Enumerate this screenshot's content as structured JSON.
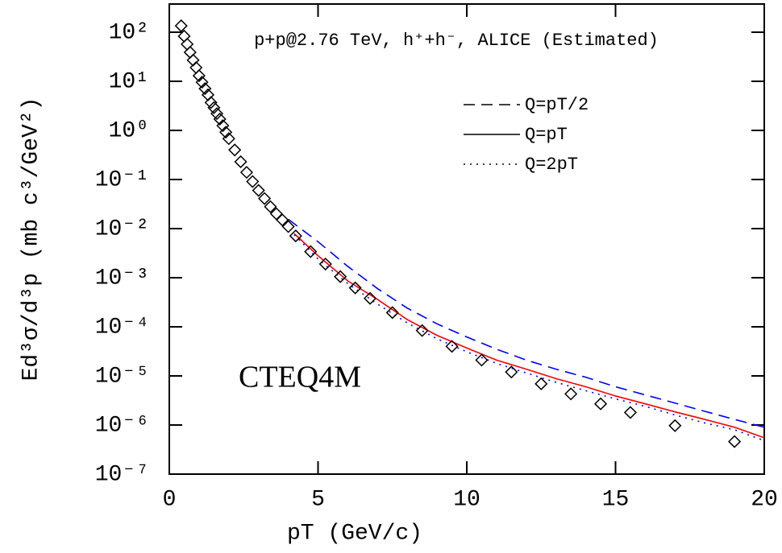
{
  "chart_data": {
    "type": "line",
    "title": "p+p@2.76 TeV, h⁺+h⁻, ALICE (Estimated)",
    "annotation": "CTEQ4M",
    "x_label": "pT (GeV/c)",
    "y_label": "Ed³σ/d³p (mb c³/GeV²)",
    "log_y": true,
    "legend": "upper right",
    "xlim": [
      0,
      20
    ],
    "xticks": [
      0,
      5,
      10,
      15,
      20
    ],
    "ylim": [
      1e-07,
      375
    ],
    "yticks": [
      {
        "value": 100,
        "label": "10²"
      },
      {
        "value": 10,
        "label": "10¹"
      },
      {
        "value": 1,
        "label": "10⁰"
      },
      {
        "value": 0.1,
        "label": "10⁻¹"
      },
      {
        "value": 0.01,
        "label": "10⁻²"
      },
      {
        "value": 0.001,
        "label": "10⁻³"
      },
      {
        "value": 0.0001,
        "label": "10⁻⁴"
      },
      {
        "value": 1e-05,
        "label": "10⁻⁵"
      },
      {
        "value": 1e-06,
        "label": "10⁻⁶"
      },
      {
        "value": 1e-07,
        "label": "10⁻⁷"
      }
    ],
    "data_points": {
      "marker": "diamond",
      "color": "#000000",
      "x": [
        0.4,
        0.5,
        0.6,
        0.7,
        0.8,
        0.9,
        1.0,
        1.1,
        1.2,
        1.3,
        1.4,
        1.5,
        1.6,
        1.7,
        1.8,
        1.9,
        2.0,
        2.2,
        2.4,
        2.6,
        2.8,
        3.0,
        3.2,
        3.4,
        3.6,
        3.8,
        4.0,
        4.25,
        4.75,
        5.25,
        5.75,
        6.25,
        6.75,
        7.5,
        8.5,
        9.5,
        10.5,
        11.5,
        12.5,
        13.5,
        14.5,
        15.5,
        17,
        19
      ],
      "values": [
        135,
        83,
        57,
        39,
        27,
        19,
        13,
        9.6,
        7.1,
        5.3,
        3.7,
        2.9,
        2.2,
        1.7,
        1.25,
        0.92,
        0.68,
        0.4,
        0.23,
        0.14,
        0.091,
        0.06,
        0.041,
        0.028,
        0.02,
        0.015,
        0.011,
        0.0071,
        0.0034,
        0.0019,
        0.00105,
        0.00062,
        0.00038,
        0.000195,
        8.4e-05,
        4e-05,
        2.1e-05,
        1.2e-05,
        6.9e-06,
        4.3e-06,
        2.7e-06,
        1.8e-06,
        9.7e-07,
        4.6e-07
      ]
    },
    "series": [
      {
        "name": "Q=pT/2",
        "color": "#0000ff",
        "dash": "dashed",
        "x": [
          4,
          5,
          6,
          7,
          8,
          9,
          10,
          11,
          12,
          13,
          14,
          15,
          16,
          17,
          18,
          19,
          20
        ],
        "values": [
          0.0155,
          0.0054,
          0.0017,
          0.0006,
          0.00024,
          0.000115,
          6.2e-05,
          3.5e-05,
          2.1e-05,
          1.37e-05,
          9.4e-06,
          6e-06,
          4.1e-06,
          2.8e-06,
          1.9e-06,
          1.3e-06,
          9e-07
        ]
      },
      {
        "name": "Q=pT",
        "color": "#ff0000",
        "dash": "solid",
        "x": [
          4.2,
          5,
          6,
          7,
          8,
          9,
          10,
          11,
          12,
          13,
          14,
          15,
          16,
          17,
          18,
          19,
          20
        ],
        "values": [
          0.0079,
          0.0028,
          0.00086,
          0.00036,
          0.00014,
          6.7e-05,
          3.7e-05,
          2.1e-05,
          1.37e-05,
          8.8e-06,
          6e-06,
          3.9e-06,
          2.7e-06,
          1.85e-06,
          1.3e-06,
          9e-07,
          5.5e-07
        ]
      },
      {
        "name": "Q=2pT",
        "color": "#0000ff",
        "dash": "dotted",
        "x": [
          4.2,
          5,
          6,
          7,
          8,
          9,
          10,
          11,
          12,
          13,
          14,
          15,
          16,
          17,
          18,
          19,
          20
        ],
        "values": [
          0.0075,
          0.0024,
          0.00076,
          0.00029,
          0.00012,
          5.7e-05,
          3.1e-05,
          1.8e-05,
          1.15e-05,
          7.4e-06,
          5e-06,
          3.4e-06,
          2.4e-06,
          1.6e-06,
          1.1e-06,
          8e-07,
          4.8e-07
        ]
      }
    ]
  }
}
